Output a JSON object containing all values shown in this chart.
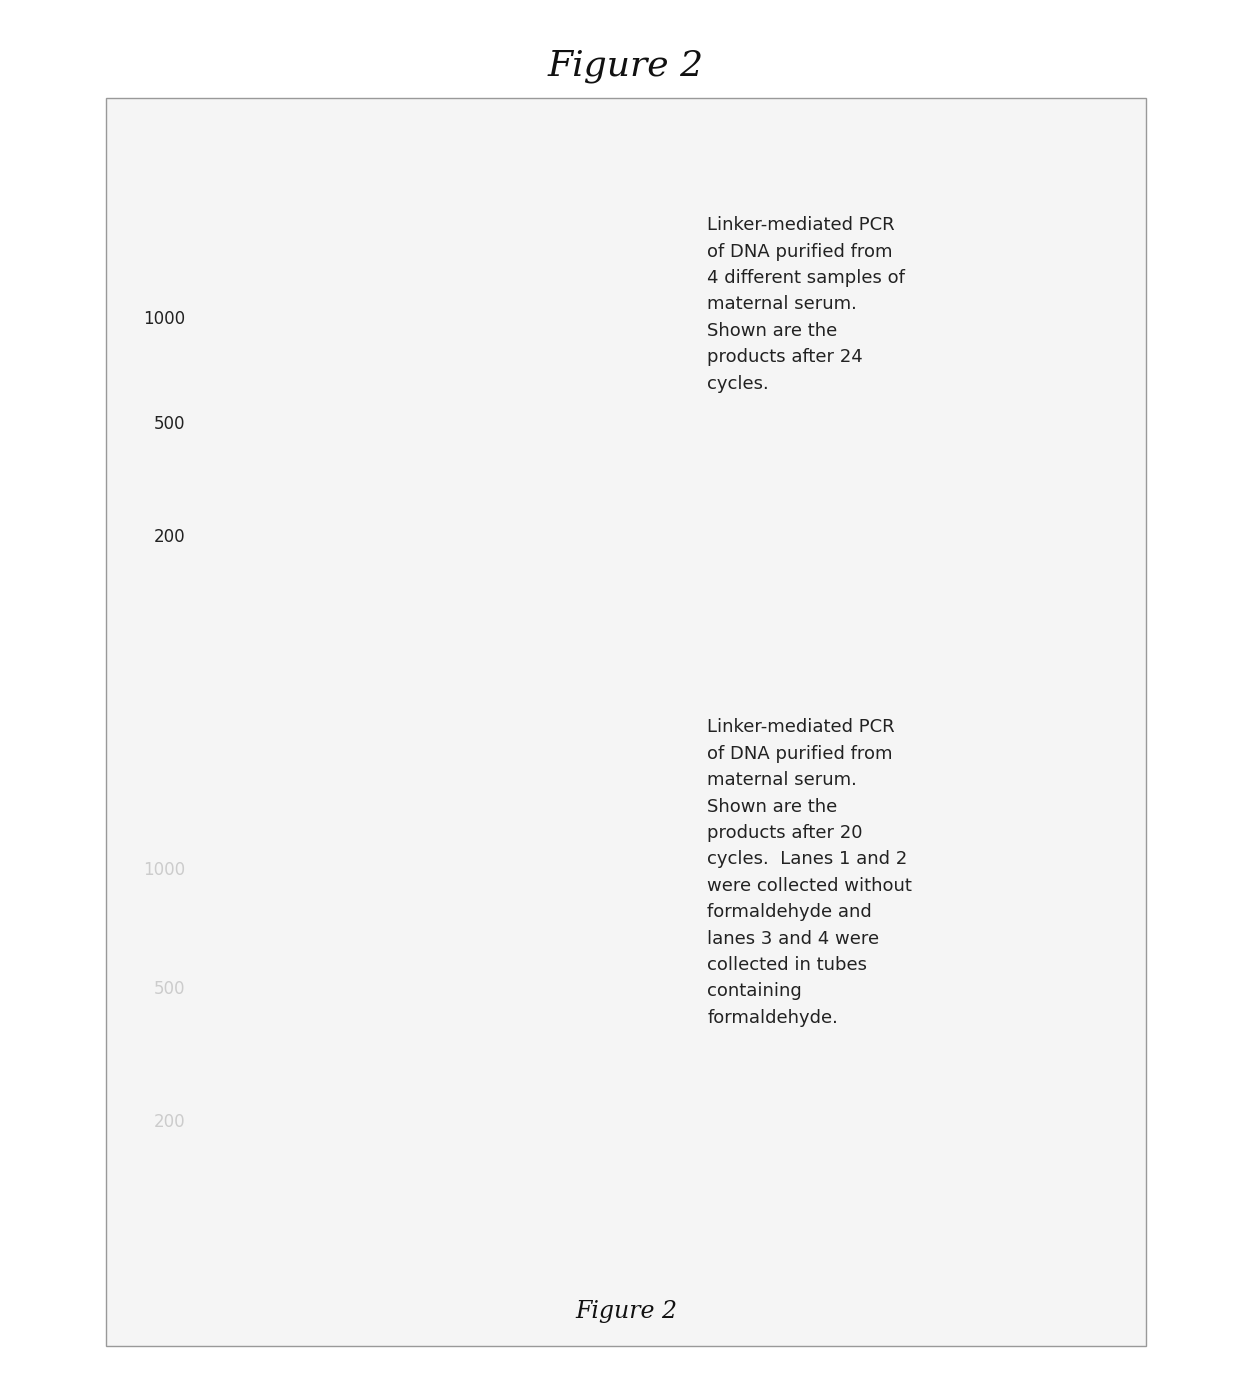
{
  "title": "Figure 2",
  "figure_caption_inside": "Figure 2",
  "background_color": "#ffffff",
  "panel1_annotation": "Linker-mediated PCR\nof DNA purified from\n4 different samples of\nmaternal serum.\nShown are the\nproducts after 24\ncycles.",
  "panel2_annotation": "Linker-mediated PCR\nof DNA purified from\nmaternal serum.\nShown are the\nproducts after 20\ncycles.  Lanes 1 and 2\nwere collected without\nformaldehyde and\nlanes 3 and 4 were\ncollected in tubes\ncontaining\nformaldehyde.",
  "panel1_labels": [
    [
      "1000",
      0.72
    ],
    [
      "500",
      0.47
    ],
    [
      "200",
      0.2
    ]
  ],
  "panel2_labels": [
    [
      "1000",
      0.68
    ],
    [
      "500",
      0.44
    ],
    [
      "200",
      0.17
    ]
  ],
  "title_fontsize": 26,
  "annotation_fontsize": 13,
  "label_fontsize": 12,
  "caption_fontsize": 17
}
